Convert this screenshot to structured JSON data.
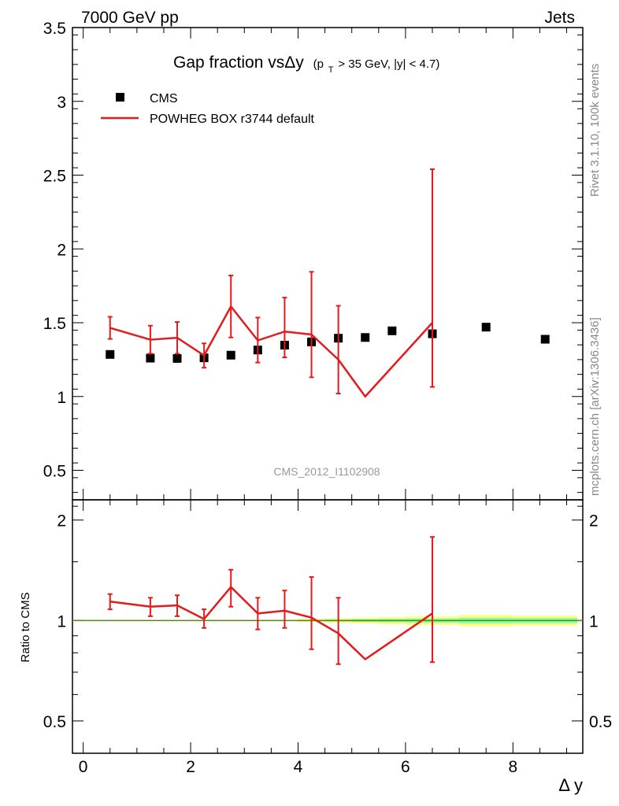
{
  "header": {
    "left": "7000 GeV pp",
    "right": "Jets"
  },
  "title": {
    "main": "Gap fraction vsΔy",
    "sub": "(p",
    "sub_subscript": "T",
    "sub_rest": " > 35 GeV, |y| < 4.7)"
  },
  "side_labels": {
    "rivet": "Rivet 3.1.10,  100k events",
    "mcplots": "mcplots.cern.ch [arXiv:1306.3436]"
  },
  "analysis_id": "CMS_2012_I1102908",
  "colors": {
    "data": "#000000",
    "mc": "#e41a1c",
    "band_outer": "#ffff88",
    "band_inner": "#88ffaa",
    "ratio_line": "#558800"
  },
  "chart_data": [
    {
      "type": "scatter",
      "panel": "main",
      "xlabel": "Δ y",
      "ylabel": "",
      "xlim": [
        -0.2,
        9.3
      ],
      "ylim": [
        0.3,
        3.5
      ],
      "x_ticks": [
        0,
        2,
        4,
        6,
        8
      ],
      "y_ticks": [
        0.5,
        1,
        1.5,
        2,
        2.5,
        3,
        3.5
      ],
      "y_tick_labels": [
        "0.5",
        "1",
        "1.5",
        "2",
        "2.5",
        "3",
        "3.5"
      ],
      "legend_position": "top-left",
      "series": [
        {
          "name": "CMS",
          "style": "markers",
          "x": [
            0.5,
            1.25,
            1.75,
            2.25,
            2.75,
            3.25,
            3.75,
            4.25,
            4.75,
            5.25,
            5.75,
            6.5,
            7.5,
            8.6
          ],
          "y": [
            1.285,
            1.26,
            1.258,
            1.262,
            1.28,
            1.315,
            1.348,
            1.37,
            1.395,
            1.4,
            1.445,
            1.425,
            1.47,
            1.388
          ]
        },
        {
          "name": "POWHEG BOX r3744 default",
          "style": "line",
          "x": [
            0.5,
            1.25,
            1.75,
            2.25,
            2.75,
            3.25,
            3.75,
            4.25,
            4.75,
            5.25,
            6.5
          ],
          "y": [
            1.465,
            1.385,
            1.398,
            1.278,
            1.61,
            1.38,
            1.44,
            1.42,
            1.25,
            1.0,
            1.5
          ],
          "err_low": [
            1.39,
            1.29,
            1.29,
            1.195,
            1.4,
            1.23,
            1.265,
            1.13,
            1.02,
            null,
            1.065
          ],
          "err_high": [
            1.54,
            1.48,
            1.505,
            1.36,
            1.82,
            1.535,
            1.67,
            1.845,
            1.615,
            null,
            2.54
          ]
        }
      ]
    },
    {
      "type": "line",
      "panel": "ratio",
      "xlabel": "Δ y",
      "ylabel": "Ratio to CMS",
      "xlim": [
        -0.2,
        9.3
      ],
      "ylim": [
        0.4,
        2.3
      ],
      "x_ticks": [
        0,
        2,
        4,
        6,
        8
      ],
      "x_tick_labels": [
        "0",
        "2",
        "4",
        "6",
        "8"
      ],
      "y_ticks": [
        0.5,
        1,
        2
      ],
      "y_tick_labels": [
        "0.5",
        "1",
        "2"
      ],
      "reference": 1.0,
      "band": {
        "x_edges": [
          4.0,
          4.5,
          5.0,
          5.5,
          6.0,
          7.0,
          8.0,
          9.2
        ],
        "outer_low": [
          0.99,
          0.985,
          0.98,
          0.975,
          0.97,
          0.96,
          0.965
        ],
        "outer_high": [
          1.01,
          1.015,
          1.02,
          1.025,
          1.03,
          1.04,
          1.035
        ],
        "inner_low": [
          0.995,
          0.993,
          0.99,
          0.988,
          0.985,
          0.98,
          0.982
        ],
        "inner_high": [
          1.005,
          1.007,
          1.01,
          1.012,
          1.015,
          1.02,
          1.018
        ]
      },
      "series": [
        {
          "name": "POWHEG BOX r3744 default",
          "x": [
            0.5,
            1.25,
            1.75,
            2.25,
            2.75,
            3.25,
            3.75,
            4.25,
            4.75,
            5.25,
            6.5
          ],
          "y": [
            1.14,
            1.1,
            1.11,
            1.01,
            1.26,
            1.05,
            1.07,
            1.02,
            0.915,
            0.765,
            1.05
          ],
          "err_low": [
            1.08,
            1.03,
            1.03,
            0.95,
            1.1,
            0.94,
            0.95,
            0.82,
            0.74,
            null,
            0.75
          ],
          "err_high": [
            1.2,
            1.17,
            1.19,
            1.08,
            1.42,
            1.17,
            1.23,
            1.35,
            1.17,
            null,
            1.78
          ]
        }
      ]
    }
  ]
}
